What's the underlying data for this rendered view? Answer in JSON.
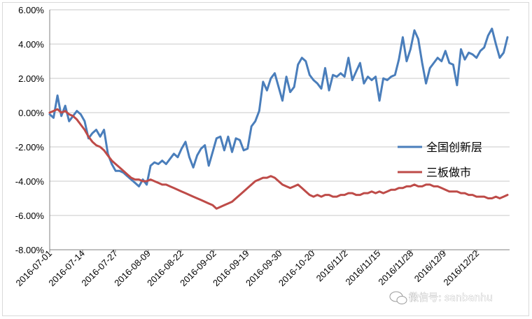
{
  "chart_data": {
    "type": "line",
    "ylim": [
      -0.08,
      0.06
    ],
    "y_tick_labels": [
      "6.00%",
      "4.00%",
      "2.00%",
      "0.00%",
      "-2.00%",
      "-4.00%",
      "-6.00%",
      "-8.00%"
    ],
    "x_tick_labels": [
      "2016-07-01",
      "2016-07-14",
      "2016-07-27",
      "2016-08-09",
      "2016-08-22",
      "2016-09-02",
      "2016-09-19",
      "2016-09-30",
      "2016-10-20",
      "2016/11/2",
      "2016/11/15",
      "2016/11/28",
      "2016/12/9",
      "2016/12/22"
    ],
    "grid": "horizontal",
    "legend_position": "right",
    "series": [
      {
        "name": "全国创新层",
        "color": "#4a7ebb",
        "values": [
          -0.1,
          -0.3,
          1.0,
          -0.2,
          0.4,
          -0.5,
          -0.2,
          0.1,
          -0.1,
          -0.5,
          -1.5,
          -1.2,
          -1.0,
          -1.4,
          -1.0,
          -2.4,
          -3.0,
          -3.4,
          -3.4,
          -3.5,
          -3.7,
          -3.9,
          -4.1,
          -4.3,
          -3.9,
          -4.2,
          -3.1,
          -2.9,
          -3.0,
          -2.8,
          -3.0,
          -2.7,
          -2.4,
          -2.6,
          -2.1,
          -1.7,
          -2.6,
          -3.2,
          -2.5,
          -2.1,
          -1.9,
          -3.1,
          -2.3,
          -1.5,
          -1.4,
          -2.2,
          -1.4,
          -2.3,
          -1.5,
          -1.6,
          -2.2,
          -2.1,
          -0.8,
          -0.5,
          0.1,
          1.8,
          1.3,
          2.0,
          2.3,
          1.5,
          0.7,
          2.1,
          1.2,
          1.5,
          2.8,
          3.2,
          3.0,
          2.2,
          1.9,
          1.7,
          1.4,
          2.6,
          1.3,
          2.2,
          2.1,
          2.3,
          2.1,
          3.2,
          1.9,
          2.4,
          2.9,
          1.7,
          2.1,
          1.9,
          2.1,
          0.7,
          2.0,
          1.9,
          2.1,
          2.2,
          3.1,
          4.4,
          3.0,
          3.7,
          4.8,
          4.3,
          2.9,
          1.7,
          2.6,
          2.9,
          3.2,
          3.0,
          3.6,
          2.9,
          2.8,
          1.6,
          3.7,
          3.1,
          3.5,
          3.4,
          3.2,
          3.6,
          3.8,
          4.5,
          4.9,
          4.0,
          3.2,
          3.5,
          4.4
        ]
      },
      {
        "name": "三板做市",
        "color": "#be4b48",
        "values": [
          0.0,
          0.1,
          0.2,
          0.0,
          0.1,
          -0.1,
          -0.2,
          -0.4,
          -0.7,
          -1.0,
          -1.4,
          -1.7,
          -1.9,
          -2.0,
          -2.2,
          -2.5,
          -2.8,
          -3.0,
          -3.2,
          -3.4,
          -3.6,
          -3.8,
          -3.9,
          -3.9,
          -4.0,
          -4.0,
          -3.9,
          -4.0,
          -4.1,
          -4.2,
          -4.2,
          -4.3,
          -4.4,
          -4.5,
          -4.6,
          -4.7,
          -4.8,
          -4.9,
          -5.0,
          -5.1,
          -5.2,
          -5.3,
          -5.4,
          -5.6,
          -5.5,
          -5.4,
          -5.3,
          -5.2,
          -5.0,
          -4.8,
          -4.6,
          -4.4,
          -4.2,
          -4.0,
          -3.9,
          -3.8,
          -3.8,
          -3.7,
          -3.8,
          -4.0,
          -4.2,
          -4.3,
          -4.4,
          -4.3,
          -4.2,
          -4.4,
          -4.6,
          -4.8,
          -4.9,
          -4.8,
          -4.9,
          -4.8,
          -4.8,
          -4.9,
          -4.9,
          -4.8,
          -4.8,
          -4.7,
          -4.7,
          -4.8,
          -4.8,
          -4.7,
          -4.7,
          -4.6,
          -4.7,
          -4.6,
          -4.7,
          -4.6,
          -4.5,
          -4.5,
          -4.4,
          -4.4,
          -4.3,
          -4.3,
          -4.2,
          -4.3,
          -4.3,
          -4.2,
          -4.2,
          -4.3,
          -4.3,
          -4.4,
          -4.5,
          -4.6,
          -4.6,
          -4.6,
          -4.7,
          -4.7,
          -4.8,
          -4.8,
          -4.9,
          -4.9,
          -4.9,
          -5.0,
          -5.0,
          -4.9,
          -5.0,
          -4.9,
          -4.8
        ]
      }
    ]
  },
  "watermark": {
    "text": "微信号: sanbanhu",
    "icon": "wechat-icon"
  }
}
